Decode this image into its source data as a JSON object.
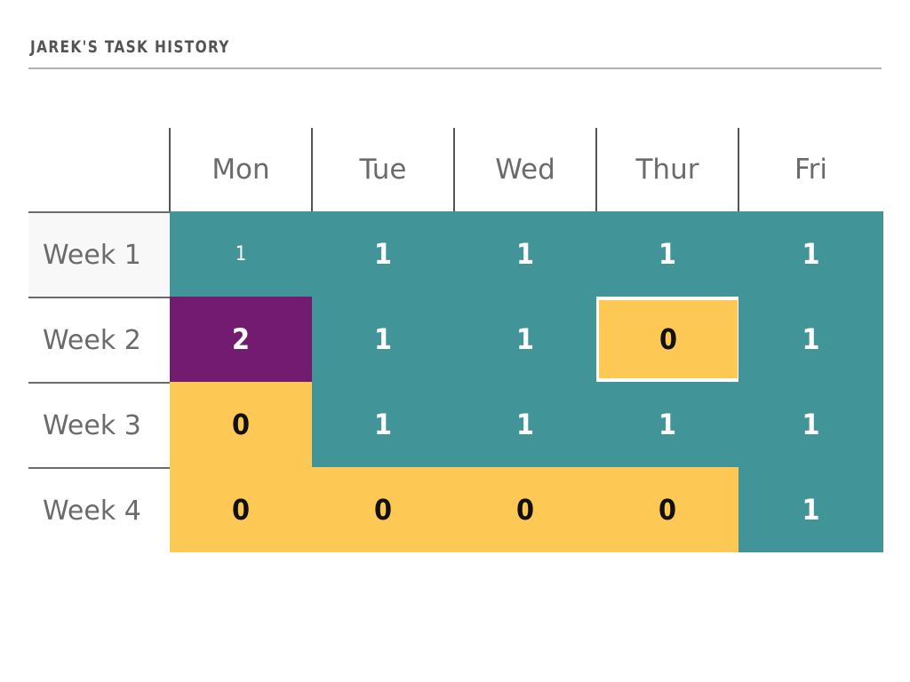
{
  "title": "JAREK'S TASK HISTORY",
  "colors": {
    "teal": "#419498",
    "purple": "#731b70",
    "yellow": "#fec855",
    "header_text": "#6b6b6b"
  },
  "chart_data": {
    "type": "heatmap",
    "title": "JAREK'S TASK HISTORY",
    "columns": [
      "Mon",
      "Tue",
      "Wed",
      "Thur",
      "Fri"
    ],
    "rows": [
      "Week 1",
      "Week 2",
      "Week 3",
      "Week 4"
    ],
    "values": [
      [
        1,
        1,
        1,
        1,
        1
      ],
      [
        2,
        1,
        1,
        0,
        1
      ],
      [
        0,
        1,
        1,
        1,
        1
      ],
      [
        0,
        0,
        0,
        0,
        1
      ]
    ],
    "color_scale": {
      "0": "#fec855",
      "1": "#419498",
      "2": "#731b70"
    }
  }
}
